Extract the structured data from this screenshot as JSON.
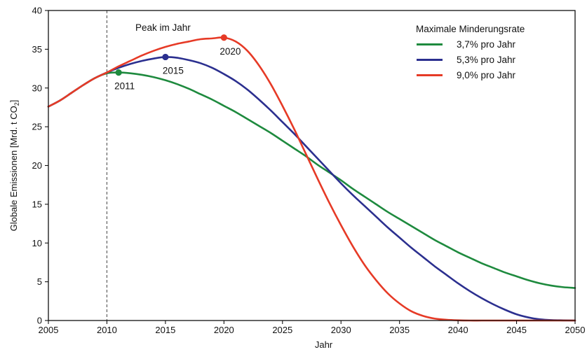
{
  "chart_data": {
    "type": "line",
    "title": "",
    "xlabel": "Jahr",
    "ylabel_main": "Globale Emissionen [Mrd. t CO",
    "ylabel_sub": "2",
    "ylabel_tail": "]",
    "xlim": [
      2005,
      2050
    ],
    "ylim": [
      0,
      40
    ],
    "x_ticks": [
      2005,
      2010,
      2015,
      2020,
      2025,
      2030,
      2035,
      2040,
      2045,
      2050
    ],
    "y_ticks": [
      0,
      5,
      10,
      15,
      20,
      25,
      30,
      35,
      40
    ],
    "reference_line": {
      "x": 2010,
      "style": "dashed"
    },
    "legend_title": "Maximale Minderungsrate",
    "legend_position": "top-right",
    "annotation_peak": "Peak im Jahr",
    "series": [
      {
        "name": "3,7% pro Jahr",
        "color": "#1e8a3e",
        "peak": {
          "x": 2011,
          "y": 32.0,
          "label": "2011"
        },
        "x": [
          2005,
          2006,
          2007,
          2008,
          2009,
          2010,
          2011,
          2012,
          2013,
          2014,
          2015,
          2016,
          2017,
          2018,
          2019,
          2020,
          2021,
          2022,
          2023,
          2024,
          2025,
          2026,
          2027,
          2028,
          2029,
          2030,
          2031,
          2032,
          2033,
          2034,
          2035,
          2036,
          2037,
          2038,
          2039,
          2040,
          2041,
          2042,
          2043,
          2044,
          2045,
          2046,
          2047,
          2048,
          2049,
          2050
        ],
        "y": [
          27.6,
          28.4,
          29.4,
          30.4,
          31.3,
          31.9,
          32.0,
          31.9,
          31.7,
          31.4,
          31.0,
          30.5,
          29.9,
          29.2,
          28.5,
          27.7,
          26.9,
          26.0,
          25.1,
          24.2,
          23.2,
          22.2,
          21.2,
          20.1,
          19.1,
          18.1,
          17.0,
          16.0,
          15.0,
          14.0,
          13.1,
          12.2,
          11.3,
          10.4,
          9.6,
          8.8,
          8.1,
          7.4,
          6.8,
          6.2,
          5.7,
          5.2,
          4.8,
          4.5,
          4.3,
          4.2
        ]
      },
      {
        "name": "5,3% pro Jahr",
        "color": "#2b2f8f",
        "peak": {
          "x": 2015,
          "y": 34.0,
          "label": "2015"
        },
        "x": [
          2005,
          2006,
          2007,
          2008,
          2009,
          2010,
          2011,
          2012,
          2013,
          2014,
          2015,
          2016,
          2017,
          2018,
          2019,
          2020,
          2021,
          2022,
          2023,
          2024,
          2025,
          2026,
          2027,
          2028,
          2029,
          2030,
          2031,
          2032,
          2033,
          2034,
          2035,
          2036,
          2037,
          2038,
          2039,
          2040,
          2041,
          2042,
          2043,
          2044,
          2045,
          2046,
          2047,
          2048,
          2049,
          2050
        ],
        "y": [
          27.6,
          28.4,
          29.4,
          30.4,
          31.3,
          32.0,
          32.6,
          33.1,
          33.5,
          33.8,
          34.0,
          33.9,
          33.6,
          33.2,
          32.6,
          31.8,
          30.9,
          29.8,
          28.5,
          27.1,
          25.6,
          24.1,
          22.5,
          20.9,
          19.3,
          17.7,
          16.2,
          14.8,
          13.4,
          12.0,
          10.7,
          9.4,
          8.2,
          7.0,
          5.9,
          4.8,
          3.8,
          2.9,
          2.1,
          1.4,
          0.8,
          0.4,
          0.15,
          0.05,
          0.02,
          0.0
        ]
      },
      {
        "name": "9,0% pro Jahr",
        "color": "#e63a26",
        "peak": {
          "x": 2020,
          "y": 36.5,
          "label": "2020"
        },
        "x": [
          2005,
          2006,
          2007,
          2008,
          2009,
          2010,
          2011,
          2012,
          2013,
          2014,
          2015,
          2016,
          2017,
          2018,
          2019,
          2020,
          2021,
          2022,
          2023,
          2024,
          2025,
          2026,
          2027,
          2028,
          2029,
          2030,
          2031,
          2032,
          2033,
          2034,
          2035,
          2036,
          2037,
          2038,
          2039,
          2040,
          2041,
          2042,
          2043,
          2044,
          2045,
          2046,
          2047,
          2048,
          2049,
          2050
        ],
        "y": [
          27.6,
          28.4,
          29.4,
          30.4,
          31.3,
          32.0,
          32.8,
          33.5,
          34.2,
          34.8,
          35.3,
          35.7,
          36.0,
          36.3,
          36.4,
          36.5,
          36.0,
          34.8,
          32.9,
          30.5,
          27.7,
          24.7,
          21.5,
          18.3,
          15.2,
          12.3,
          9.6,
          7.2,
          5.2,
          3.5,
          2.2,
          1.2,
          0.6,
          0.25,
          0.1,
          0.03,
          0.0,
          0.0,
          0.0,
          0.0,
          0.0,
          0.0,
          0.0,
          0.0,
          0.0,
          0.0
        ]
      }
    ]
  }
}
